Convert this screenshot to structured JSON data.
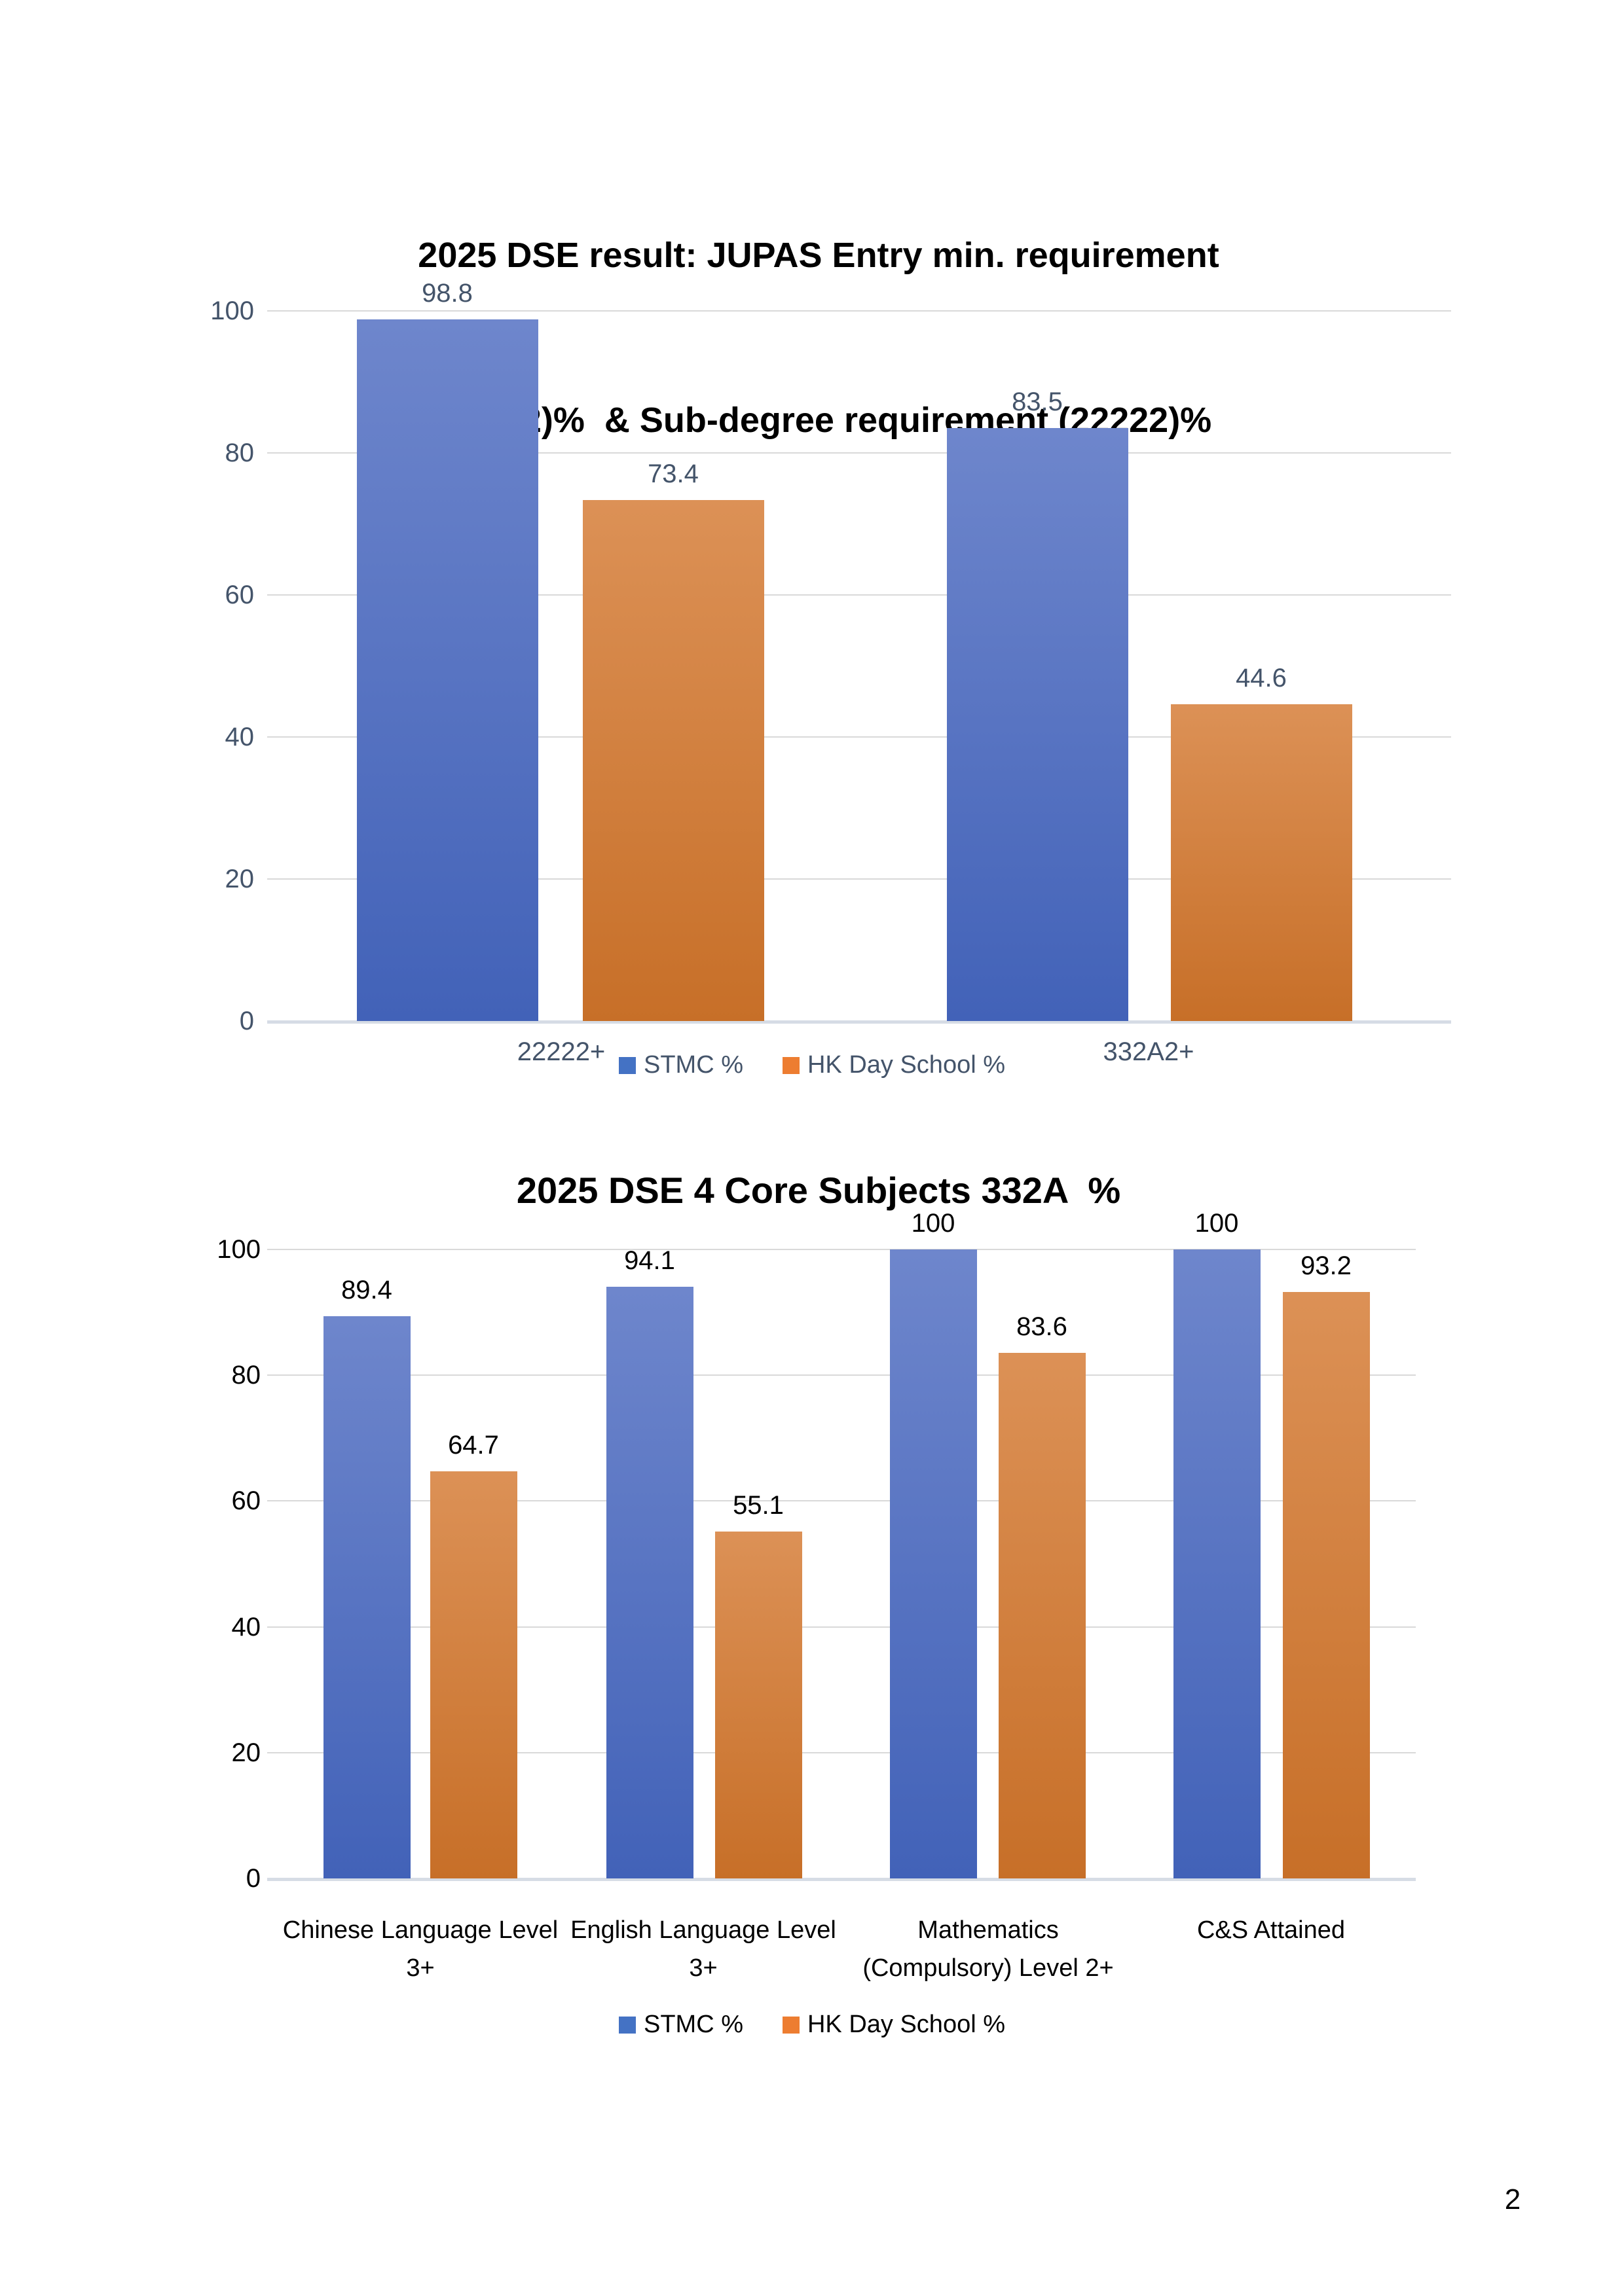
{
  "page": {
    "number": "2"
  },
  "colors": {
    "bar_blue_top": "#6E86CC",
    "bar_blue_bottom": "#4262B8",
    "bar_orange_top": "#DC9156",
    "bar_orange_bottom": "#C76F28",
    "legend_blue": "#4472C4",
    "legend_orange": "#ED7D31",
    "chart1_text": "#44546A",
    "gridline": "#D9D9D9",
    "axis_line": "#D6DCE5"
  },
  "chart_data": [
    {
      "type": "bar",
      "title": "2025 DSE result: JUPAS Entry min. requirement (332A2)%  & Sub-degree requirement (22222)%",
      "title_lines": [
        "2025 DSE result: JUPAS Entry min. requirement",
        "(332A2)%  & Sub-degree requirement (22222)%"
      ],
      "categories": [
        "22222+",
        "332A2+"
      ],
      "series": [
        {
          "name": "STMC %",
          "values": [
            98.8,
            83.5
          ]
        },
        {
          "name": "HK Day School %",
          "values": [
            73.4,
            44.6
          ]
        }
      ],
      "ylim": [
        0,
        100
      ],
      "yticks": [
        0,
        20,
        40,
        60,
        80,
        100
      ],
      "grid": true,
      "data_labels": true,
      "legend_position": "bottom"
    },
    {
      "type": "bar",
      "title": "2025 DSE 4 Core Subjects 332A  %",
      "categories": [
        "Chinese Language Level 3+",
        "English Language Level 3+",
        "Mathematics (Compulsory) Level 2+",
        "C&S Attained"
      ],
      "series": [
        {
          "name": "STMC %",
          "values": [
            89.4,
            94.1,
            100,
            100
          ]
        },
        {
          "name": "HK Day School %",
          "values": [
            64.7,
            55.1,
            83.6,
            93.2
          ]
        }
      ],
      "ylim": [
        0,
        100
      ],
      "yticks": [
        0,
        20,
        40,
        60,
        80,
        100
      ],
      "grid": true,
      "data_labels": true,
      "legend_position": "bottom"
    }
  ]
}
